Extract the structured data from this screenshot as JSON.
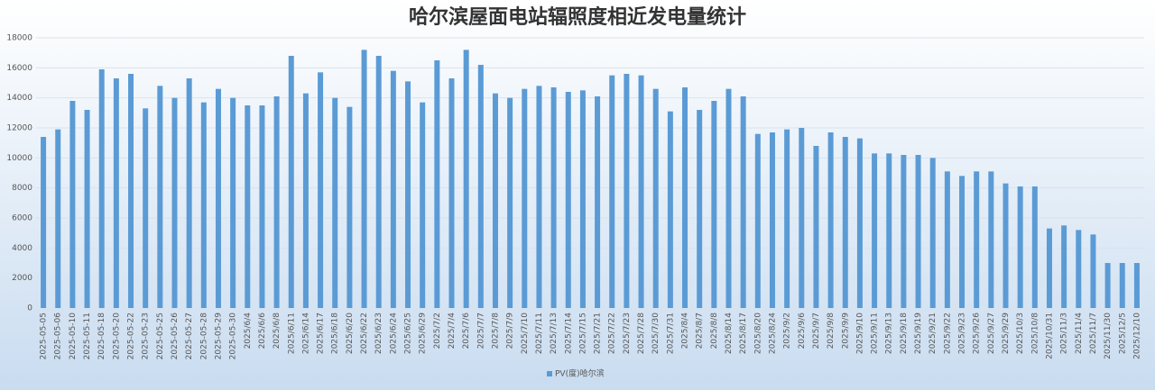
{
  "chart_data": {
    "type": "bar",
    "title": "哈尔滨屋面电站辐照度相近发电量统计",
    "categories": [
      "2025-05-05",
      "2025-05-06",
      "2025-05-10",
      "2025-05-11",
      "2025-05-18",
      "2025-05-20",
      "2025-05-22",
      "2025-05-23",
      "2025-05-25",
      "2025-05-26",
      "2025-05-27",
      "2025-05-28",
      "2025-05-29",
      "2025-05-30",
      "2025/6/4",
      "2025/6/6",
      "2025/6/8",
      "2025/6/11",
      "2025/6/14",
      "2025/6/17",
      "2025/6/18",
      "2025/6/20",
      "2025/6/22",
      "2025/6/23",
      "2025/6/24",
      "2025/6/25",
      "2025/6/29",
      "2025/7/2",
      "2025/7/4",
      "2025/7/6",
      "2025/7/7",
      "2025/7/8",
      "2025/7/9",
      "2025/7/10",
      "2025/7/11",
      "2025/7/13",
      "2025/7/14",
      "2025/7/15",
      "2025/7/21",
      "2025/7/22",
      "2025/7/23",
      "2025/7/28",
      "2025/7/30",
      "2025/7/31",
      "2025/8/4",
      "2025/8/7",
      "2025/8/8",
      "2025/8/14",
      "2025/8/17",
      "2025/8/20",
      "2025/8/24",
      "2025/9/2",
      "2025/9/6",
      "2025/9/7",
      "2025/9/8",
      "2025/9/9",
      "2025/9/10",
      "2025/9/11",
      "2025/9/13",
      "2025/9/18",
      "2025/9/19",
      "2025/9/21",
      "2025/9/22",
      "2025/9/23",
      "2025/9/26",
      "2025/9/27",
      "2025/9/29",
      "2025/10/3",
      "2025/10/8",
      "2025/10/31",
      "2025/11/3",
      "2025/11/4",
      "2025/11/7",
      "2025/11/30",
      "2025/12/5",
      "2025/12/10"
    ],
    "series": [
      {
        "name": "PV(度)哈尔滨",
        "color": "#5b9bd5",
        "values": [
          11400,
          11900,
          13800,
          13200,
          15900,
          15300,
          15600,
          13300,
          14800,
          14000,
          15300,
          13700,
          14600,
          14000,
          13500,
          13500,
          14100,
          16800,
          14300,
          15700,
          14000,
          13400,
          17200,
          16800,
          15800,
          15100,
          13700,
          16500,
          15300,
          17200,
          16200,
          14300,
          14000,
          14600,
          14800,
          14700,
          14400,
          14500,
          14100,
          15500,
          15600,
          15500,
          14600,
          13100,
          14700,
          13200,
          13800,
          14600,
          14100,
          11600,
          11700,
          11900,
          12000,
          10800,
          11700,
          11400,
          11300,
          10300,
          10300,
          10200,
          10200,
          10000,
          9100,
          8800,
          9100,
          9100,
          8300,
          8100,
          8100,
          5300,
          5500,
          5200,
          4900,
          3000,
          3000,
          3000
        ]
      }
    ],
    "ylim": [
      0,
      18000
    ],
    "yticks": [
      0,
      2000,
      4000,
      6000,
      8000,
      10000,
      12000,
      14000,
      16000,
      18000
    ],
    "grid": true,
    "legend": "bottom"
  }
}
